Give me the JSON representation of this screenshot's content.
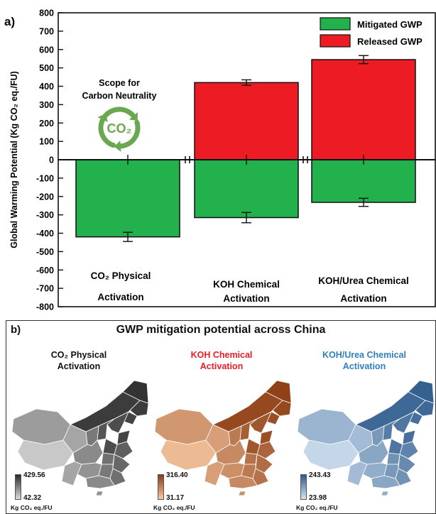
{
  "panel_a": {
    "label": "a)",
    "chart_data": {
      "type": "bar",
      "stacked_diverging": true,
      "ylabel": "Global Warming Potential (Kg CO₂ eq./FU)",
      "ylim": [
        -800,
        800
      ],
      "yticks": [
        800,
        700,
        600,
        500,
        400,
        300,
        200,
        100,
        0,
        -100,
        -200,
        -300,
        -400,
        -500,
        -600,
        -700,
        -800
      ],
      "categories": [
        "CO₂ Physical\nActivation",
        "KOH Chemical\nActivation",
        "KOH/Urea Chemical\nActivation"
      ],
      "series": [
        {
          "name": "Mitigated GWP",
          "color": "#22b14c",
          "values": [
            -420,
            -315,
            -232
          ],
          "errors": [
            25,
            28,
            22
          ]
        },
        {
          "name": "Released GWP",
          "color": "#ed1c24",
          "values": [
            0,
            420,
            545
          ],
          "errors": [
            0,
            15,
            22
          ]
        }
      ],
      "legend": "top-right",
      "annotation": {
        "line1": "Scope for",
        "line2": "Carbon Neutrality",
        "icon": "co2-cycle-icon",
        "icon_text": "CO₂",
        "color": "#6aa84f"
      }
    }
  },
  "panel_b": {
    "label": "b)",
    "title": "GWP mitigation potential across China",
    "unit": "Kg CO₂ eq./FU",
    "maps": [
      {
        "title": "CO₂ Physical\nActivation",
        "title_color": "#111111",
        "max": "429.56",
        "min": "42.32",
        "dark": "#2a2a2a",
        "light": "#d9d9d9"
      },
      {
        "title": "KOH Chemical\nActivation",
        "title_color": "#ed1c24",
        "max": "316.40",
        "min": "31.17",
        "dark": "#8b3a10",
        "light": "#f7c9a3"
      },
      {
        "title": "KOH/Urea Chemical\nActivation",
        "title_color": "#2f7fc1",
        "max": "243.43",
        "min": "23.98",
        "dark": "#2d5a8c",
        "light": "#d6e4f3"
      }
    ]
  }
}
